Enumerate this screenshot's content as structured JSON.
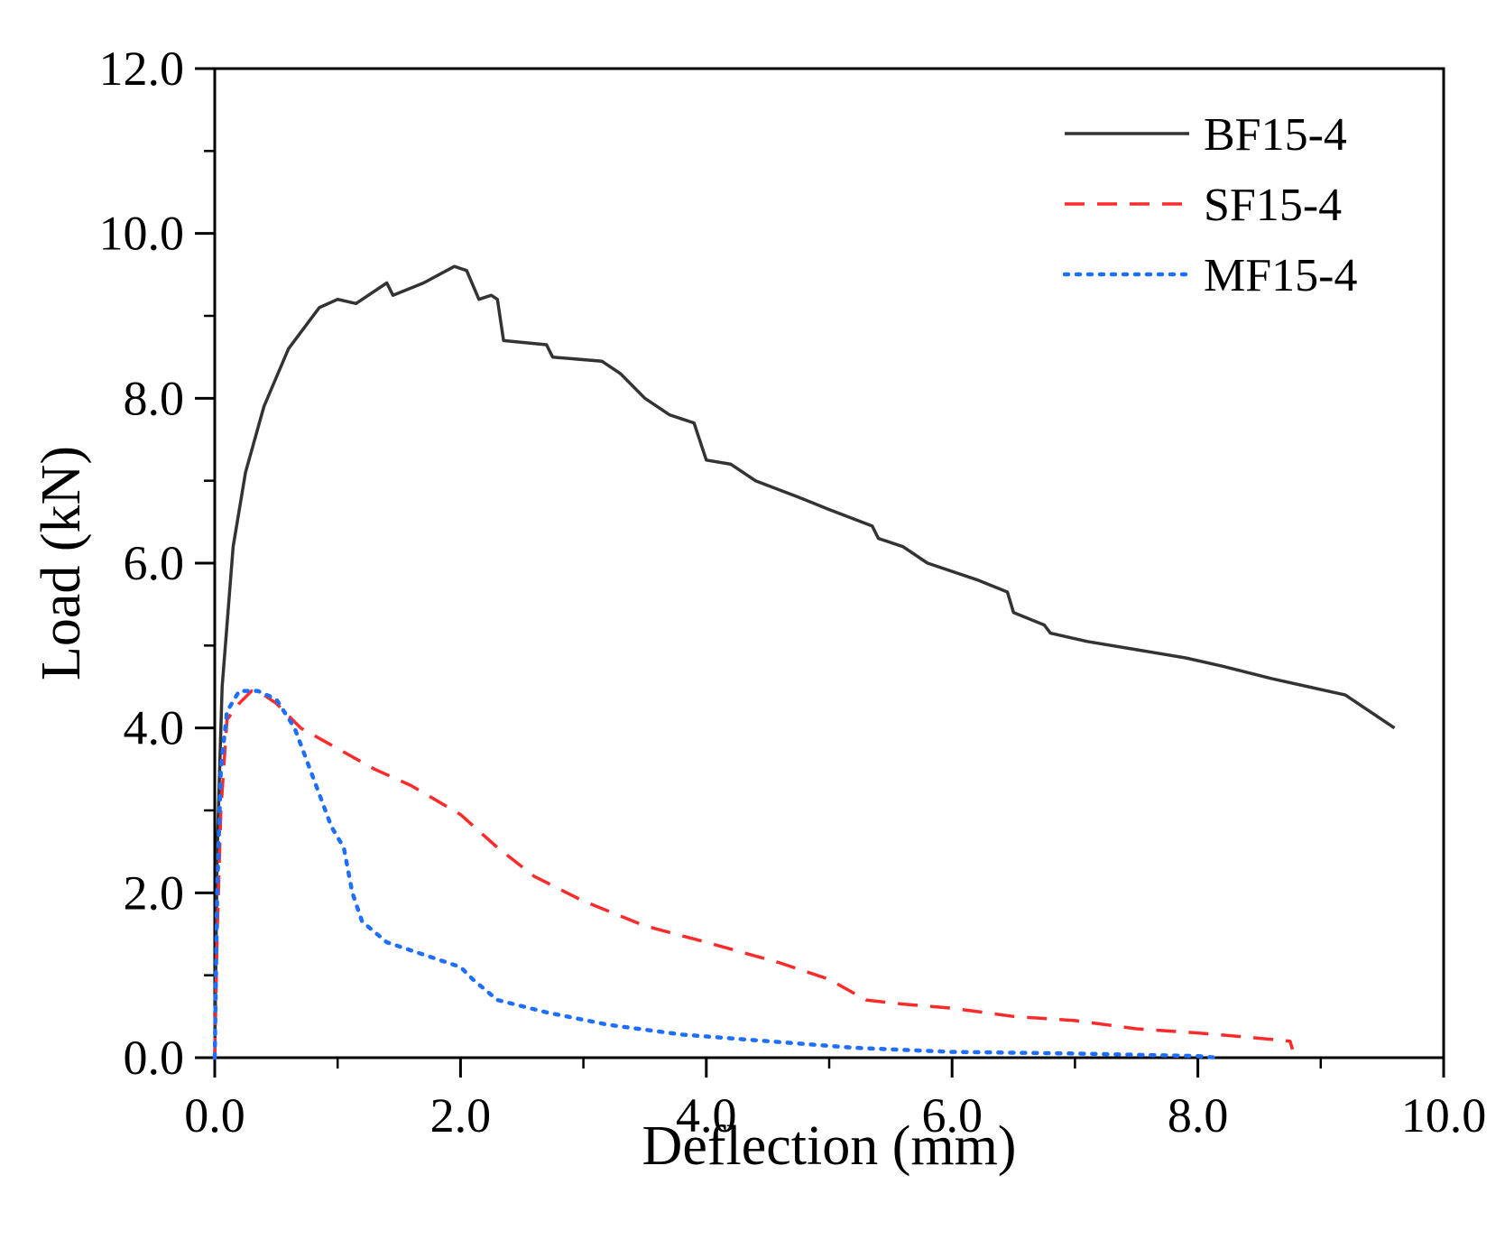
{
  "chart_data": {
    "type": "line",
    "title": "",
    "xlabel": "Deflection (mm)",
    "ylabel": "Load (kN)",
    "xlim": [
      0,
      10
    ],
    "ylim": [
      0,
      12
    ],
    "x_ticks": [
      "0.0",
      "2.0",
      "4.0",
      "6.0",
      "8.0",
      "10.0"
    ],
    "y_ticks": [
      "0.0",
      "2.0",
      "4.0",
      "6.0",
      "8.0",
      "10.0",
      "12.0"
    ],
    "legend_position": "top-right",
    "grid": false,
    "series": [
      {
        "name": "BF15-4",
        "color": "#333333",
        "style": "solid",
        "points": [
          [
            0,
            0
          ],
          [
            0.02,
            2.5
          ],
          [
            0.06,
            4.5
          ],
          [
            0.15,
            6.2
          ],
          [
            0.25,
            7.1
          ],
          [
            0.4,
            7.9
          ],
          [
            0.6,
            8.6
          ],
          [
            0.85,
            9.1
          ],
          [
            1.0,
            9.2
          ],
          [
            1.15,
            9.15
          ],
          [
            1.4,
            9.4
          ],
          [
            1.45,
            9.25
          ],
          [
            1.7,
            9.4
          ],
          [
            1.95,
            9.6
          ],
          [
            2.05,
            9.55
          ],
          [
            2.15,
            9.2
          ],
          [
            2.25,
            9.25
          ],
          [
            2.3,
            9.2
          ],
          [
            2.35,
            8.7
          ],
          [
            2.7,
            8.65
          ],
          [
            2.75,
            8.5
          ],
          [
            3.15,
            8.45
          ],
          [
            3.3,
            8.3
          ],
          [
            3.5,
            8.0
          ],
          [
            3.7,
            7.8
          ],
          [
            3.9,
            7.7
          ],
          [
            4.0,
            7.25
          ],
          [
            4.2,
            7.2
          ],
          [
            4.4,
            7.0
          ],
          [
            4.75,
            6.8
          ],
          [
            5.0,
            6.65
          ],
          [
            5.35,
            6.45
          ],
          [
            5.4,
            6.3
          ],
          [
            5.6,
            6.2
          ],
          [
            5.8,
            6.0
          ],
          [
            6.2,
            5.8
          ],
          [
            6.45,
            5.65
          ],
          [
            6.5,
            5.4
          ],
          [
            6.75,
            5.25
          ],
          [
            6.8,
            5.15
          ],
          [
            7.1,
            5.05
          ],
          [
            7.5,
            4.95
          ],
          [
            7.9,
            4.85
          ],
          [
            8.2,
            4.75
          ],
          [
            8.6,
            4.6
          ],
          [
            8.9,
            4.5
          ],
          [
            9.2,
            4.4
          ],
          [
            9.4,
            4.2
          ],
          [
            9.6,
            4.0
          ]
        ]
      },
      {
        "name": "SF15-4",
        "color": "#ff2a2a",
        "style": "dashed",
        "points": [
          [
            0,
            0
          ],
          [
            0.02,
            1.5
          ],
          [
            0.05,
            3.0
          ],
          [
            0.1,
            4.1
          ],
          [
            0.2,
            4.3
          ],
          [
            0.3,
            4.45
          ],
          [
            0.4,
            4.4
          ],
          [
            0.5,
            4.3
          ],
          [
            0.7,
            4.0
          ],
          [
            1.0,
            3.75
          ],
          [
            1.3,
            3.5
          ],
          [
            1.6,
            3.3
          ],
          [
            2.0,
            2.95
          ],
          [
            2.3,
            2.55
          ],
          [
            2.6,
            2.2
          ],
          [
            3.0,
            1.9
          ],
          [
            3.5,
            1.6
          ],
          [
            4.0,
            1.4
          ],
          [
            4.6,
            1.15
          ],
          [
            5.0,
            0.95
          ],
          [
            5.3,
            0.7
          ],
          [
            5.6,
            0.65
          ],
          [
            6.0,
            0.6
          ],
          [
            6.5,
            0.5
          ],
          [
            7.0,
            0.45
          ],
          [
            7.5,
            0.35
          ],
          [
            8.0,
            0.3
          ],
          [
            8.4,
            0.25
          ],
          [
            8.75,
            0.2
          ],
          [
            8.77,
            0.1
          ]
        ]
      },
      {
        "name": "MF15-4",
        "color": "#1e6fff",
        "style": "dotted",
        "points": [
          [
            0,
            0
          ],
          [
            0.02,
            2.0
          ],
          [
            0.05,
            3.5
          ],
          [
            0.1,
            4.2
          ],
          [
            0.2,
            4.45
          ],
          [
            0.35,
            4.45
          ],
          [
            0.5,
            4.35
          ],
          [
            0.65,
            4.0
          ],
          [
            0.8,
            3.4
          ],
          [
            0.95,
            2.8
          ],
          [
            1.05,
            2.55
          ],
          [
            1.12,
            2.0
          ],
          [
            1.2,
            1.65
          ],
          [
            1.4,
            1.4
          ],
          [
            1.7,
            1.25
          ],
          [
            2.0,
            1.1
          ],
          [
            2.1,
            0.95
          ],
          [
            2.3,
            0.7
          ],
          [
            2.7,
            0.55
          ],
          [
            3.2,
            0.4
          ],
          [
            3.8,
            0.28
          ],
          [
            4.5,
            0.2
          ],
          [
            5.2,
            0.12
          ],
          [
            6.0,
            0.07
          ],
          [
            7.0,
            0.05
          ],
          [
            8.0,
            0.02
          ],
          [
            8.15,
            0.0
          ]
        ]
      }
    ]
  }
}
